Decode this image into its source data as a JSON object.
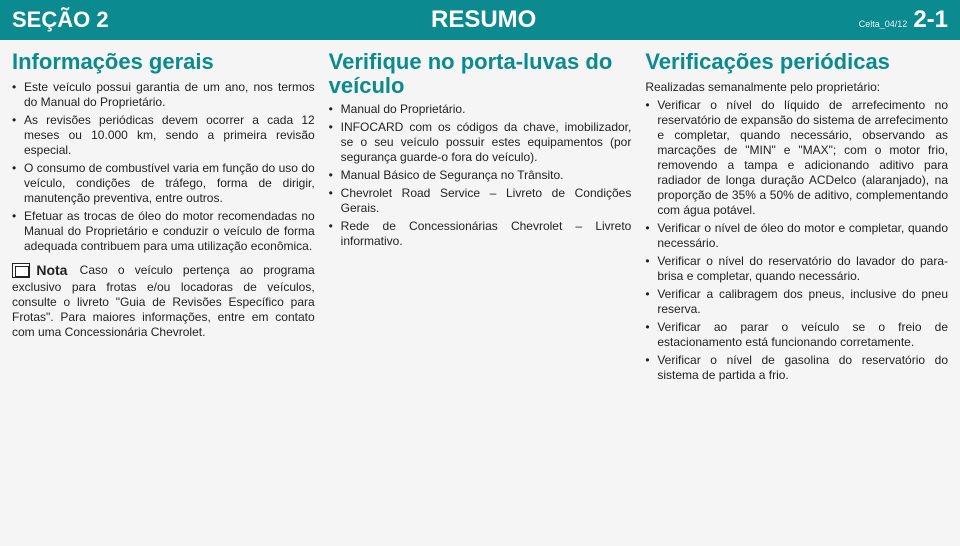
{
  "header": {
    "section": "SEÇÃO 2",
    "title": "RESUMO",
    "meta": "Celta_04/12",
    "page": "2-1"
  },
  "col1": {
    "heading": "Informações gerais",
    "items": [
      "Este veículo possui garantia de um ano, nos termos do Manual do Proprietário.",
      "As revisões periódicas devem ocorrer a cada 12 meses ou 10.000 km, sendo a primeira revisão especial.",
      "O consumo de combustível varia em função do uso do veículo, condições de tráfego, forma de dirigir, manutenção preventiva, entre outros.",
      "Efetuar as trocas de óleo do motor recomendadas no Manual do Proprietário e conduzir o veículo de forma adequada contribuem para uma utilização econômica."
    ],
    "nota_label": "Nota",
    "nota_text": "Caso o veículo pertença ao programa exclusivo para frotas e/ou locadoras de veículos, consulte o livreto \"Guia de Revisões Específico para Frotas\". Para maiores informações, entre em contato com uma Concessionária Chevrolet."
  },
  "col2": {
    "heading": "Verifique no porta-luvas do veículo",
    "items": [
      "Manual do Proprietário.",
      "INFOCARD com os códigos da chave, imobilizador, se o seu veículo possuir estes equipamentos (por segurança guarde-o fora do veículo).",
      "Manual Básico de Segurança no Trânsito.",
      "Chevrolet Road Service – Livreto de Condições Gerais.",
      "Rede de Concessionárias Chevrolet – Livreto informativo."
    ]
  },
  "col3": {
    "heading": "Verificações periódicas",
    "intro": "Realizadas semanalmente pelo proprietário:",
    "items": [
      "Verificar o nível do líquido de arrefecimento no reservatório de expansão do sistema de arrefecimento e completar, quando necessário, observando as marcações de \"MIN\" e \"MAX\"; com o motor frio, removendo a tampa e adicionando aditivo para radiador de longa duração ACDelco (alaranjado), na proporção de 35% a 50% de aditivo, complementando com água potável.",
      "Verificar o nível de óleo do motor e completar, quando necessário.",
      "Verificar o nível do reservatório do lavador do para-brisa e completar, quando necessário.",
      "Verificar a calibragem dos pneus, inclusive do pneu reserva.",
      "Verificar ao parar o veículo se o freio de estacionamento está funcionando corretamente.",
      "Verificar o nível de gasolina do reservatório do sistema de partida a frio."
    ]
  }
}
